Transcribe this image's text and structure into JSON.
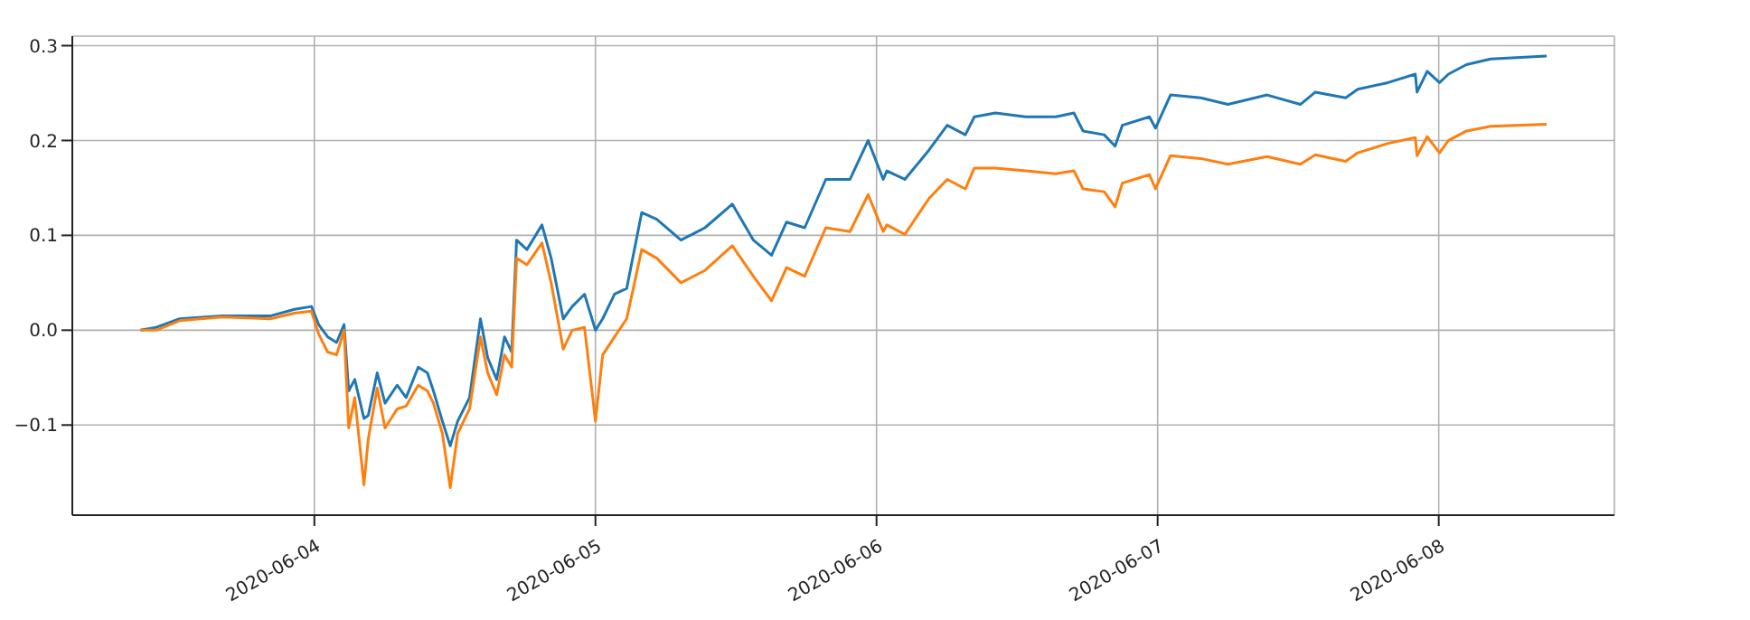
{
  "chart_data": {
    "type": "line",
    "grid": true,
    "legend": false,
    "line_style": "solid",
    "marker": "none",
    "xlim": [
      "2020-06-03T03:20",
      "2020-06-08T15:00"
    ],
    "xticks": [
      "2020-06-04",
      "2020-06-05",
      "2020-06-06",
      "2020-06-07",
      "2020-06-08"
    ],
    "ylim": [
      -0.195,
      0.31
    ],
    "yticks": [
      {
        "value": -0.1,
        "label": "−0.1"
      },
      {
        "value": 0,
        "label": "0.0"
      },
      0.1,
      0.2,
      0.3
    ],
    "x": [
      "2020-06-03T09:10",
      "2020-06-03T10:30",
      "2020-06-03T12:30",
      "2020-06-03T16:06",
      "2020-06-03T20:14",
      "2020-06-03T22:18",
      "2020-06-03T23:45",
      "2020-06-04T00:22",
      "2020-06-04T01:08",
      "2020-06-04T01:54",
      "2020-06-04T02:32",
      "2020-06-04T02:56",
      "2020-06-04T03:27",
      "2020-06-04T04:14",
      "2020-06-04T04:36",
      "2020-06-04T05:22",
      "2020-06-04T06:02",
      "2020-06-04T07:04",
      "2020-06-04T07:50",
      "2020-06-04T08:52",
      "2020-06-04T09:39",
      "2020-06-04T10:10",
      "2020-06-04T10:56",
      "2020-06-04T11:36",
      "2020-06-04T12:14",
      "2020-06-04T13:15",
      "2020-06-04T14:11",
      "2020-06-04T14:48",
      "2020-06-04T15:34",
      "2020-06-04T16:14",
      "2020-06-04T16:51",
      "2020-06-04T17:16",
      "2020-06-04T18:09",
      "2020-06-04T19:26",
      "2020-06-04T20:13",
      "2020-06-04T21:15",
      "2020-06-04T22:01",
      "2020-06-04T23:04",
      "2020-06-05T00:00",
      "2020-06-05T00:37",
      "2020-06-05T01:38",
      "2020-06-05T02:40",
      "2020-06-05T03:57",
      "2020-06-05T05:14",
      "2020-06-05T07:18",
      "2020-06-05T09:21",
      "2020-06-05T11:41",
      "2020-06-05T13:29",
      "2020-06-05T15:02",
      "2020-06-05T16:19",
      "2020-06-05T17:52",
      "2020-06-05T19:40",
      "2020-06-05T21:44",
      "2020-06-05T23:17",
      "2020-06-06T00:34",
      "2020-06-06T00:53",
      "2020-06-06T02:25",
      "2020-06-06T04:29",
      "2020-06-06T06:02",
      "2020-06-06T07:35",
      "2020-06-06T08:21",
      "2020-06-06T10:09",
      "2020-06-06T12:44",
      "2020-06-06T15:18",
      "2020-06-06T16:51",
      "2020-06-06T17:38",
      "2020-06-06T19:26",
      "2020-06-06T20:22",
      "2020-06-06T20:59",
      "2020-06-06T23:18",
      "2020-06-06T23:49",
      "2020-06-07T01:06",
      "2020-06-07T03:41",
      "2020-06-07T06:00",
      "2020-06-07T09:21",
      "2020-06-07T12:11",
      "2020-06-07T13:28",
      "2020-06-07T16:03",
      "2020-06-07T17:05",
      "2020-06-07T19:40",
      "2020-06-07T22:00",
      "2020-06-07T22:09",
      "2020-06-07T23:01",
      "2020-06-08T00:04",
      "2020-06-08T00:50",
      "2020-06-08T02:22",
      "2020-06-08T04:26",
      "2020-06-08T09:13"
    ],
    "series": [
      {
        "color": "#1f77b4",
        "values": [
          0,
          0.003,
          0.012,
          0.015,
          0.015,
          0.022,
          0.025,
          0.006,
          -0.007,
          -0.013,
          0.006,
          -0.064,
          -0.052,
          -0.093,
          -0.09,
          -0.045,
          -0.077,
          -0.058,
          -0.071,
          -0.039,
          -0.045,
          -0.064,
          -0.096,
          -0.122,
          -0.096,
          -0.071,
          0.012,
          -0.029,
          -0.052,
          -0.007,
          -0.023,
          0.095,
          0.085,
          0.111,
          0.076,
          0.012,
          0.025,
          0.038,
          0,
          0.012,
          0.038,
          0.044,
          0.124,
          0.117,
          0.095,
          0.108,
          0.133,
          0.095,
          0.079,
          0.114,
          0.108,
          0.159,
          0.159,
          0.2,
          0.159,
          0.168,
          0.159,
          0.19,
          0.216,
          0.206,
          0.225,
          0.229,
          0.225,
          0.225,
          0.229,
          0.21,
          0.206,
          0.194,
          0.216,
          0.225,
          0.213,
          0.248,
          0.245,
          0.238,
          0.248,
          0.238,
          0.251,
          0.245,
          0.254,
          0.261,
          0.27,
          0.251,
          0.273,
          0.261,
          0.27,
          0.28,
          0.286,
          0.289
        ]
      },
      {
        "color": "#ff7f0e",
        "values": [
          0,
          0,
          0.01,
          0.014,
          0.012,
          0.018,
          0.02,
          -0.004,
          -0.023,
          -0.026,
          0,
          -0.103,
          -0.071,
          -0.163,
          -0.115,
          -0.061,
          -0.103,
          -0.083,
          -0.08,
          -0.058,
          -0.064,
          -0.077,
          -0.109,
          -0.166,
          -0.109,
          -0.083,
          -0.007,
          -0.045,
          -0.068,
          -0.026,
          -0.039,
          0.076,
          0.069,
          0.092,
          0.05,
          -0.02,
          0,
          0.003,
          -0.096,
          -0.026,
          -0.007,
          0.012,
          0.085,
          0.076,
          0.05,
          0.063,
          0.089,
          0.057,
          0.031,
          0.066,
          0.057,
          0.108,
          0.104,
          0.143,
          0.104,
          0.111,
          0.101,
          0.139,
          0.159,
          0.149,
          0.171,
          0.171,
          0.168,
          0.165,
          0.168,
          0.149,
          0.146,
          0.13,
          0.155,
          0.164,
          0.149,
          0.184,
          0.181,
          0.175,
          0.183,
          0.175,
          0.185,
          0.178,
          0.187,
          0.197,
          0.203,
          0.184,
          0.204,
          0.187,
          0.2,
          0.21,
          0.215,
          0.217
        ]
      }
    ]
  }
}
